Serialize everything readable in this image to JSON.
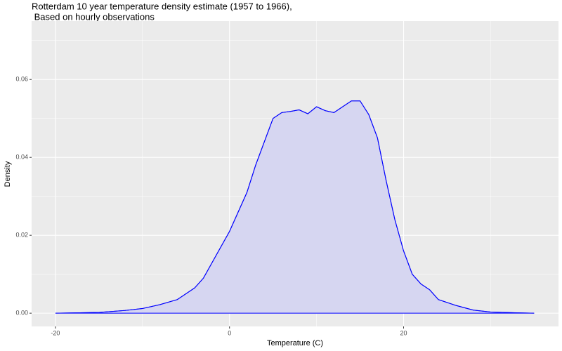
{
  "chart_data": {
    "type": "density",
    "title": [
      "Rotterdam 10 year temperature density estimate (1957 to 1966),",
      " Based on hourly observations"
    ],
    "x_label": "Temperature (C)",
    "y_label": "Density",
    "x": [
      -20,
      -15,
      -12,
      -10,
      -8,
      -6,
      -4,
      -3,
      -2,
      -1,
      0,
      1,
      2,
      3,
      4,
      5,
      6,
      7,
      8,
      9,
      10,
      11,
      12,
      13,
      14,
      15,
      16,
      17,
      18,
      19,
      20,
      21,
      22,
      23,
      24,
      26,
      28,
      30,
      33,
      35
    ],
    "values": [
      0,
      0.0002,
      0.0007,
      0.0012,
      0.0022,
      0.0035,
      0.0065,
      0.009,
      0.013,
      0.017,
      0.021,
      0.026,
      0.031,
      0.038,
      0.044,
      0.05,
      0.0515,
      0.0518,
      0.0522,
      0.0512,
      0.053,
      0.052,
      0.0515,
      0.053,
      0.0545,
      0.0545,
      0.051,
      0.045,
      0.034,
      0.024,
      0.016,
      0.01,
      0.0075,
      0.006,
      0.0035,
      0.002,
      0.0008,
      0.0003,
      0.0001,
      0
    ],
    "color": "#0000ff",
    "fill": "#d6d6f1",
    "xlim": [
      -22.74,
      37.8
    ],
    "ylim": [
      -0.0034,
      0.075
    ],
    "xticks": [
      -20,
      0,
      20
    ],
    "yticks": [
      {
        "value": 0,
        "label": "0.00"
      },
      {
        "value": 0.02,
        "label": "0.02"
      },
      {
        "value": 0.04,
        "label": "0.04"
      },
      {
        "value": 0.06,
        "label": "0.06"
      }
    ],
    "xminor": [
      -10,
      10,
      30
    ],
    "yminor": [
      0.01,
      0.03,
      0.05,
      0.07
    ],
    "grid": true
  }
}
